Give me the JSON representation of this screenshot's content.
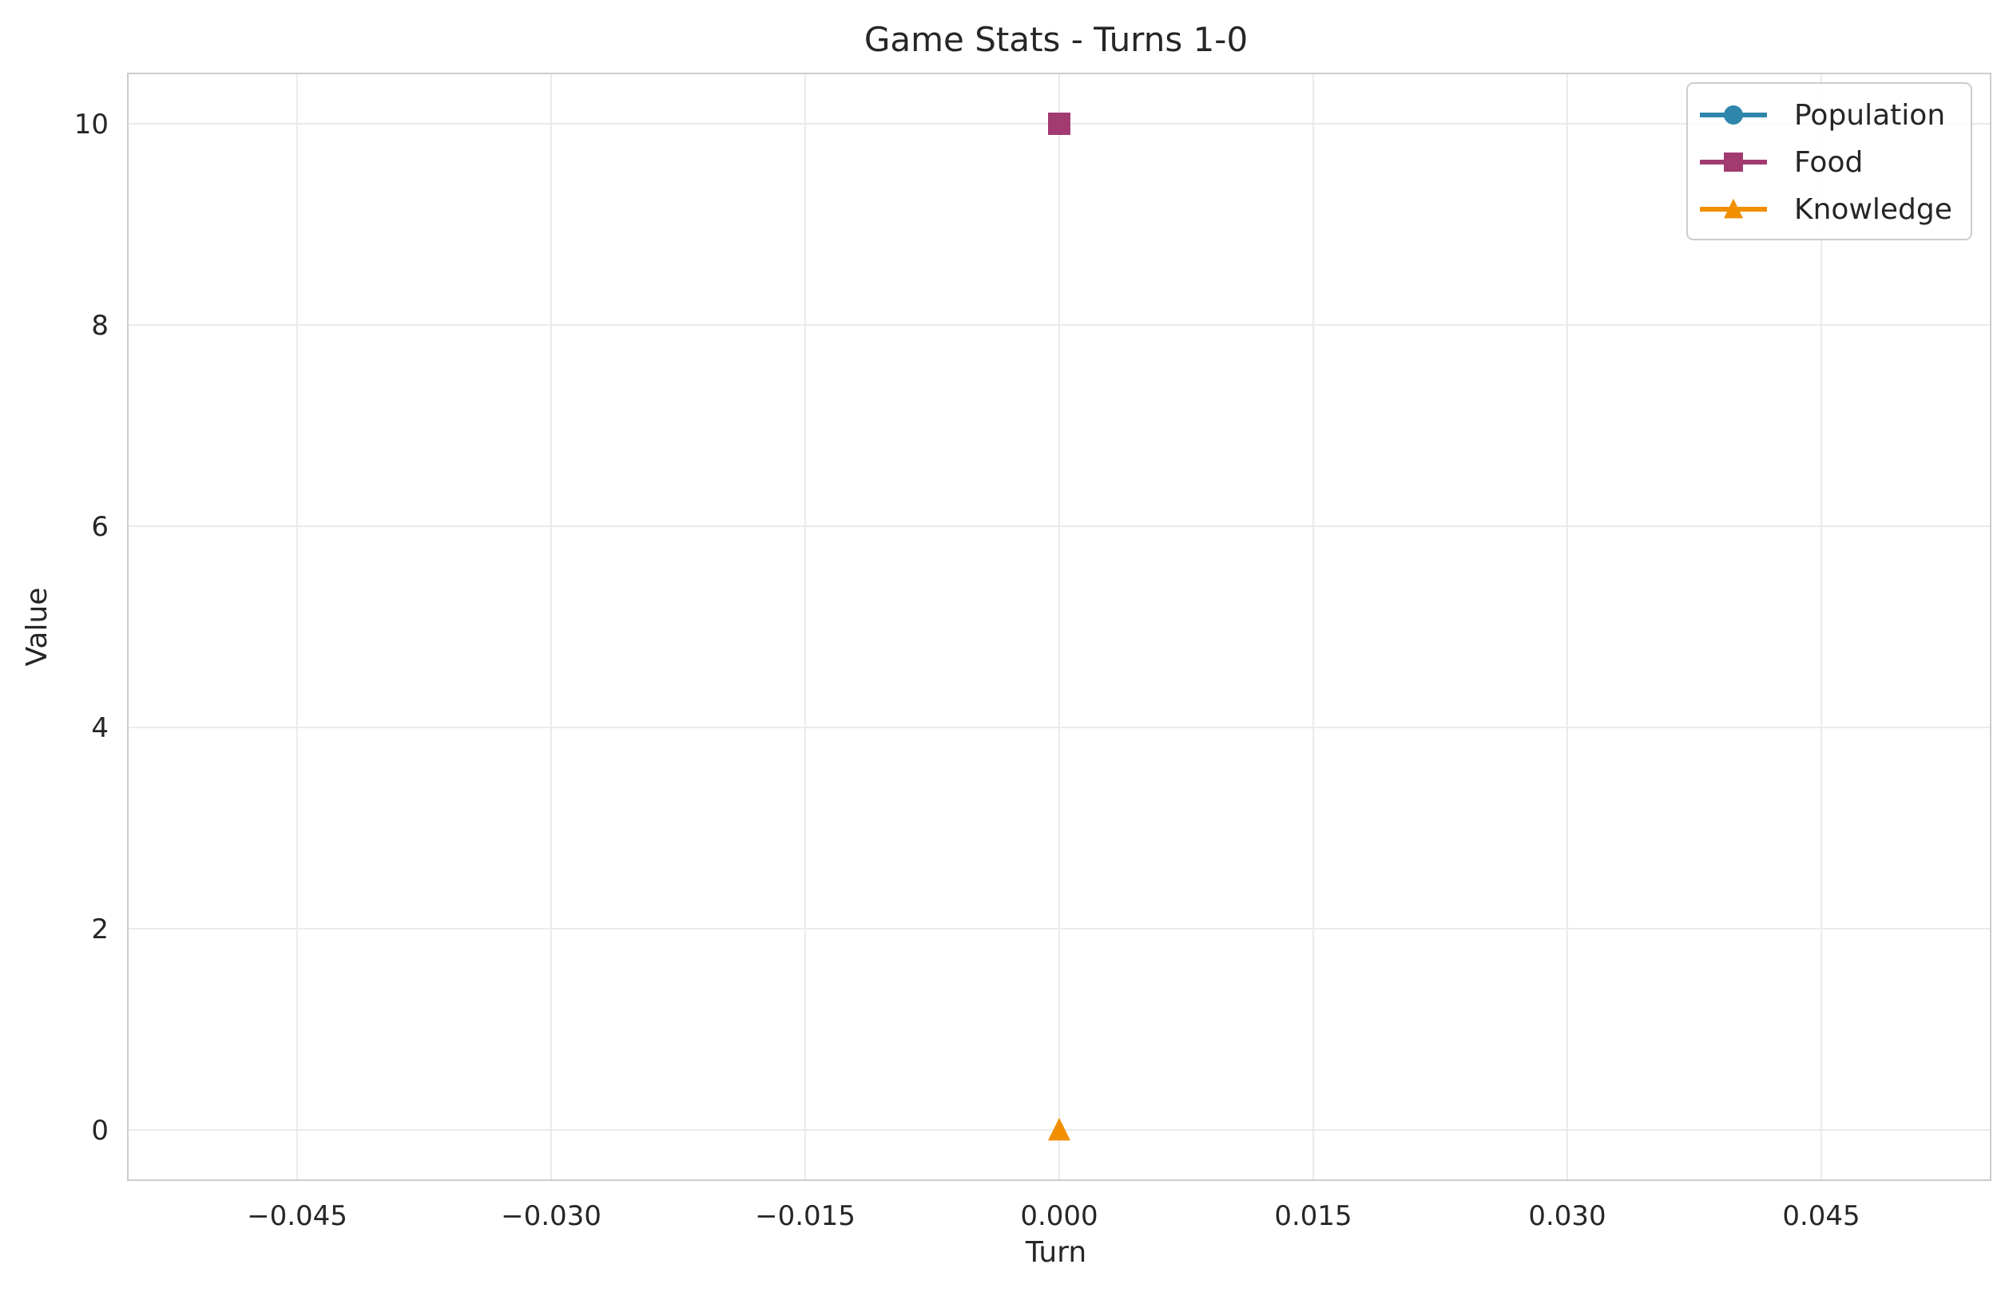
{
  "chart_data": {
    "type": "line",
    "title": "Game Stats - Turns 1-0",
    "xlabel": "Turn",
    "ylabel": "Value",
    "xlim": [
      -0.055,
      0.055
    ],
    "ylim": [
      -0.5,
      10.5
    ],
    "x_ticks": [
      -0.045,
      -0.03,
      -0.015,
      0.0,
      0.015,
      0.03,
      0.045
    ],
    "x_tick_labels": [
      "−0.045",
      "−0.030",
      "−0.015",
      "0.000",
      "0.015",
      "0.030",
      "0.045"
    ],
    "y_ticks": [
      0,
      2,
      4,
      6,
      8,
      10
    ],
    "y_tick_labels": [
      "0",
      "2",
      "4",
      "6",
      "8",
      "10"
    ],
    "grid": true,
    "legend_position": "top-right",
    "series": [
      {
        "name": "Population",
        "color": "#2e86ab",
        "marker": "circle",
        "x": [
          0.0
        ],
        "y": [
          10
        ]
      },
      {
        "name": "Food",
        "color": "#a23b72",
        "marker": "square",
        "x": [
          0.0
        ],
        "y": [
          10
        ]
      },
      {
        "name": "Knowledge",
        "color": "#f18f01",
        "marker": "triangle",
        "x": [
          0.0
        ],
        "y": [
          0
        ]
      }
    ]
  }
}
